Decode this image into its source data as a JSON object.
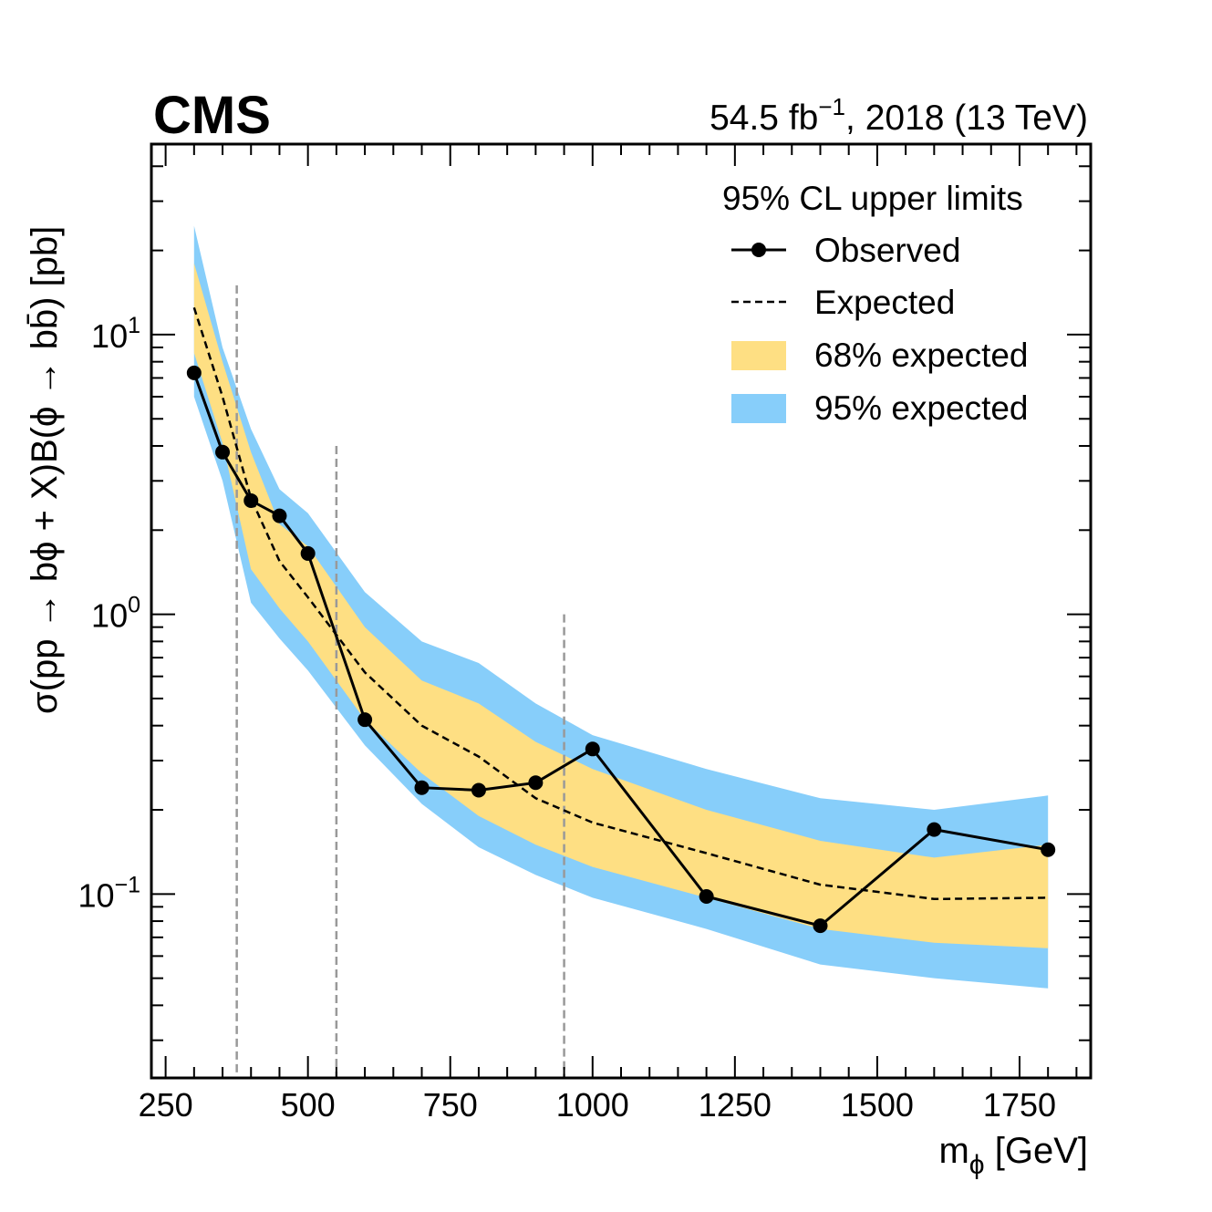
{
  "header": {
    "experiment": "CMS",
    "lumi_value": "54.5 fb",
    "lumi_exponent": "−1",
    "lumi_suffix": ", 2018 (13 TeV)"
  },
  "colors": {
    "band95": "#87cefa",
    "band68": "#fedf83",
    "observed": "#000000",
    "expected": "#000000",
    "divider": "#999999"
  },
  "chart_data": {
    "type": "line",
    "title": "",
    "xlabel_main": "m",
    "xlabel_sub": "ϕ",
    "xlabel_unit": " [GeV]",
    "ylabel": "σ(pp → bϕ + X)B(ϕ → bb̄) [pb]",
    "xlim": [
      225,
      1875
    ],
    "ylim": [
      0.022,
      48
    ],
    "yscale": "log",
    "x_ticks": [
      250,
      500,
      750,
      1000,
      1250,
      1500,
      1750
    ],
    "x_tick_labels": [
      "250",
      "500",
      "750",
      "1000",
      "1250",
      "1500",
      "1750"
    ],
    "y_ticks": [
      {
        "value": 0.1,
        "base": "10",
        "exp": "−1"
      },
      {
        "value": 1,
        "base": "10",
        "exp": "0"
      },
      {
        "value": 10,
        "base": "10",
        "exp": "1"
      }
    ],
    "mass": [
      300,
      350,
      400,
      450,
      500,
      600,
      700,
      800,
      900,
      1000,
      1200,
      1400,
      1600,
      1800
    ],
    "series": [
      {
        "name": "Observed",
        "values": [
          7.3,
          3.8,
          2.55,
          2.25,
          1.65,
          0.42,
          0.24,
          0.235,
          0.25,
          0.33,
          0.098,
          0.077,
          0.17,
          0.144
        ]
      },
      {
        "name": "Expected",
        "values": [
          12.5,
          6.0,
          2.6,
          1.55,
          1.15,
          0.62,
          0.4,
          0.31,
          0.22,
          0.18,
          0.14,
          0.108,
          0.096,
          0.097
        ]
      }
    ],
    "band68": {
      "name": "68% expected",
      "lower": [
        8.6,
        4.1,
        1.45,
        1.05,
        0.8,
        0.42,
        0.27,
        0.19,
        0.15,
        0.125,
        0.097,
        0.075,
        0.067,
        0.064
      ],
      "upper": [
        18.0,
        8.0,
        3.8,
        2.1,
        1.75,
        0.9,
        0.58,
        0.48,
        0.35,
        0.28,
        0.2,
        0.155,
        0.135,
        0.15
      ]
    },
    "band95": {
      "name": "95% expected",
      "lower": [
        6.0,
        3.0,
        1.1,
        0.82,
        0.63,
        0.34,
        0.21,
        0.147,
        0.117,
        0.097,
        0.075,
        0.056,
        0.05,
        0.046
      ],
      "upper": [
        24.5,
        9.0,
        4.6,
        2.8,
        2.3,
        1.2,
        0.8,
        0.67,
        0.48,
        0.37,
        0.28,
        0.22,
        0.2,
        0.225
      ]
    },
    "dividers": [
      {
        "x": 375,
        "y_top": 15
      },
      {
        "x": 550,
        "y_top": 4
      },
      {
        "x": 950,
        "y_top": 1
      }
    ],
    "legend": {
      "header": "95% CL upper limits",
      "placement": "top-right",
      "entries": [
        "Observed",
        "Expected",
        "68% expected",
        "95% expected"
      ]
    }
  }
}
